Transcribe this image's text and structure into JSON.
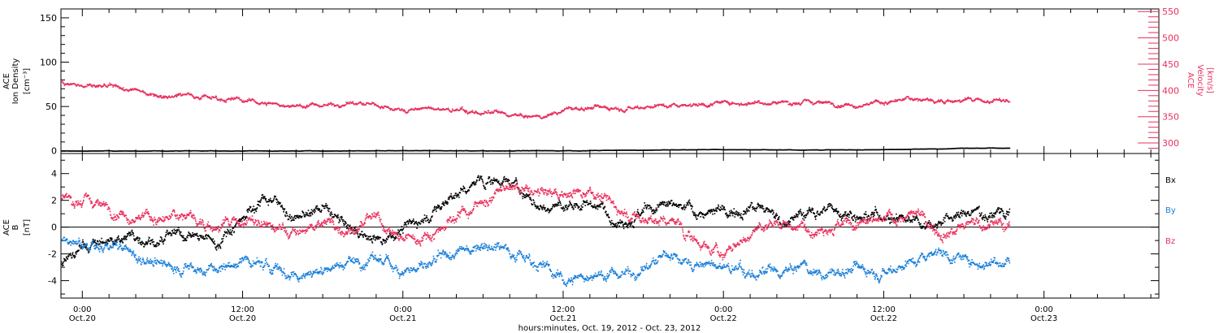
{
  "colors": {
    "black": "#000000",
    "pink": "#e8305c",
    "blue": "#1a7fd8"
  },
  "top_panel": {
    "left_axis_label": [
      "ACE",
      "Ion Density",
      "[cm⁻³]"
    ],
    "right_axis_label": [
      "ACE",
      "Velocity",
      "[km/s]"
    ]
  },
  "bottom_panel": {
    "left_axis_label": [
      "ACE",
      "B",
      "[nT]"
    ],
    "legend": [
      "Bx",
      "By",
      "Bz"
    ]
  },
  "x_axis": {
    "caption": "hours:minutes, Oct. 19, 2012 - Oct. 23, 2012"
  },
  "chart_data": [
    {
      "type": "scatter",
      "title": "",
      "xlabel": "hours:minutes, Oct. 19, 2012 - Oct. 23, 2012",
      "x_unit": "hours since 2012-10-19 00:00",
      "xlim": [
        22.4,
        104.6
      ],
      "x_ticks": [
        {
          "hours": 24,
          "time": "0:00",
          "date": "Oct.20"
        },
        {
          "hours": 36,
          "time": "12:00",
          "date": "Oct.20"
        },
        {
          "hours": 48,
          "time": "0:00",
          "date": "Oct.21"
        },
        {
          "hours": 60,
          "time": "12:00",
          "date": "Oct.21"
        },
        {
          "hours": 72,
          "time": "0:00",
          "date": "Oct.22"
        },
        {
          "hours": 84,
          "time": "12:00",
          "date": "Oct.22"
        },
        {
          "hours": 96,
          "time": "0:00",
          "date": "Oct.23"
        }
      ],
      "axes": {
        "left": {
          "label": "ACE Ion Density [cm⁻³]",
          "ylim": [
            -3,
            160
          ],
          "ticks": [
            0,
            50,
            100,
            150
          ]
        },
        "right": {
          "label": "ACE Velocity [km/s]",
          "ylim": [
            280,
            555
          ],
          "ticks": [
            300,
            350,
            400,
            450,
            500,
            550
          ]
        }
      },
      "series": [
        {
          "name": "Ion Density",
          "axis": "left",
          "color": "#000000",
          "x": [
            22.4,
            26,
            30,
            34,
            38,
            42,
            46,
            50,
            54,
            58,
            62,
            66,
            70,
            74,
            78,
            82,
            86,
            90,
            93.4
          ],
          "y": [
            0.5,
            0.5,
            0.5,
            0.6,
            0.6,
            0.6,
            0.7,
            0.7,
            0.8,
            0.8,
            1.0,
            1.5,
            2.0,
            2.0,
            1.8,
            1.8,
            2.5,
            3.5,
            3.8
          ]
        },
        {
          "name": "Velocity",
          "axis": "right",
          "color": "#e8305c",
          "x": [
            22.4,
            24,
            26,
            28,
            30,
            32,
            34,
            36,
            38,
            40,
            42,
            44,
            46,
            48,
            50,
            52,
            54,
            56,
            58,
            60,
            62,
            64,
            66,
            68,
            70,
            72,
            74,
            76,
            78,
            80,
            82,
            84,
            86,
            88,
            90,
            92,
            93.4
          ],
          "y": [
            420,
            410,
            405,
            400,
            392,
            395,
            388,
            382,
            376,
            372,
            373,
            378,
            372,
            364,
            366,
            362,
            358,
            354,
            348,
            365,
            368,
            370,
            372,
            374,
            376,
            377,
            379,
            380,
            378,
            377,
            376,
            378,
            384,
            383,
            382,
            381,
            380
          ]
        }
      ]
    },
    {
      "type": "scatter",
      "title": "",
      "xlabel": "hours:minutes, Oct. 19, 2012 - Oct. 23, 2012",
      "ylabel": "ACE B [nT]",
      "ylim": [
        -5.3,
        5.5
      ],
      "y_ticks": [
        -4,
        -2,
        0,
        2,
        4
      ],
      "series": [
        {
          "name": "Bx",
          "color": "#000000",
          "x": [
            22.4,
            24,
            26,
            28,
            30,
            32,
            34,
            36,
            38,
            40,
            42,
            44,
            46,
            48,
            50,
            52,
            54,
            56,
            58,
            60,
            62,
            64,
            66,
            68,
            70,
            72,
            74,
            76,
            78,
            80,
            82,
            84,
            86,
            88,
            90,
            92,
            93.4
          ],
          "y": [
            -2.8,
            -1.5,
            -1.0,
            -0.5,
            -1.0,
            -0.5,
            -1.2,
            1.0,
            2.5,
            0.5,
            1.5,
            -0.2,
            -0.8,
            0.0,
            1.0,
            2.5,
            3.5,
            3.6,
            1.5,
            1.5,
            2.0,
            0.8,
            1.2,
            1.5,
            1.2,
            1.0,
            2.0,
            0.5,
            1.0,
            1.5,
            1.0,
            1.0,
            0.8,
            0.5,
            1.0,
            1.2,
            1.5
          ]
        },
        {
          "name": "By",
          "color": "#1a7fd8",
          "x": [
            22.4,
            24,
            26,
            28,
            30,
            32,
            34,
            36,
            38,
            40,
            42,
            44,
            46,
            48,
            50,
            52,
            54,
            56,
            58,
            60,
            62,
            64,
            66,
            68,
            70,
            72,
            74,
            76,
            78,
            80,
            82,
            84,
            86,
            88,
            90,
            92,
            93.4
          ],
          "y": [
            -1.0,
            -1.5,
            -1.5,
            -2.0,
            -2.8,
            -3.0,
            -3.2,
            -2.5,
            -3.0,
            -3.5,
            -3.0,
            -2.5,
            -2.5,
            -3.0,
            -3.0,
            -2.0,
            -1.0,
            -1.5,
            -2.5,
            -4.0,
            -3.5,
            -3.5,
            -3.0,
            -2.0,
            -2.8,
            -3.0,
            -3.5,
            -3.5,
            -3.0,
            -3.5,
            -3.0,
            -3.0,
            -2.5,
            -1.5,
            -2.5,
            -2.5,
            -2.2
          ]
        },
        {
          "name": "Bz",
          "color": "#e8305c",
          "x": [
            22.4,
            24,
            26,
            28,
            30,
            32,
            34,
            36,
            38,
            40,
            42,
            44,
            46,
            48,
            50,
            52,
            54,
            56,
            58,
            60,
            62,
            64,
            66,
            68,
            70,
            72,
            74,
            76,
            78,
            80,
            82,
            84,
            86,
            88,
            90,
            92,
            93.4
          ],
          "y": [
            2.3,
            2.0,
            1.5,
            1.0,
            0.5,
            1.0,
            0.0,
            0.5,
            0.0,
            -0.5,
            0.5,
            0.0,
            0.5,
            -1.0,
            -0.5,
            1.0,
            2.0,
            3.0,
            2.5,
            2.5,
            3.0,
            1.5,
            0.5,
            0.5,
            -1.0,
            -2.0,
            -0.5,
            0.5,
            0.0,
            0.5,
            0.0,
            0.5,
            1.0,
            0.0,
            0.0,
            0.5,
            0.0
          ]
        }
      ]
    }
  ]
}
